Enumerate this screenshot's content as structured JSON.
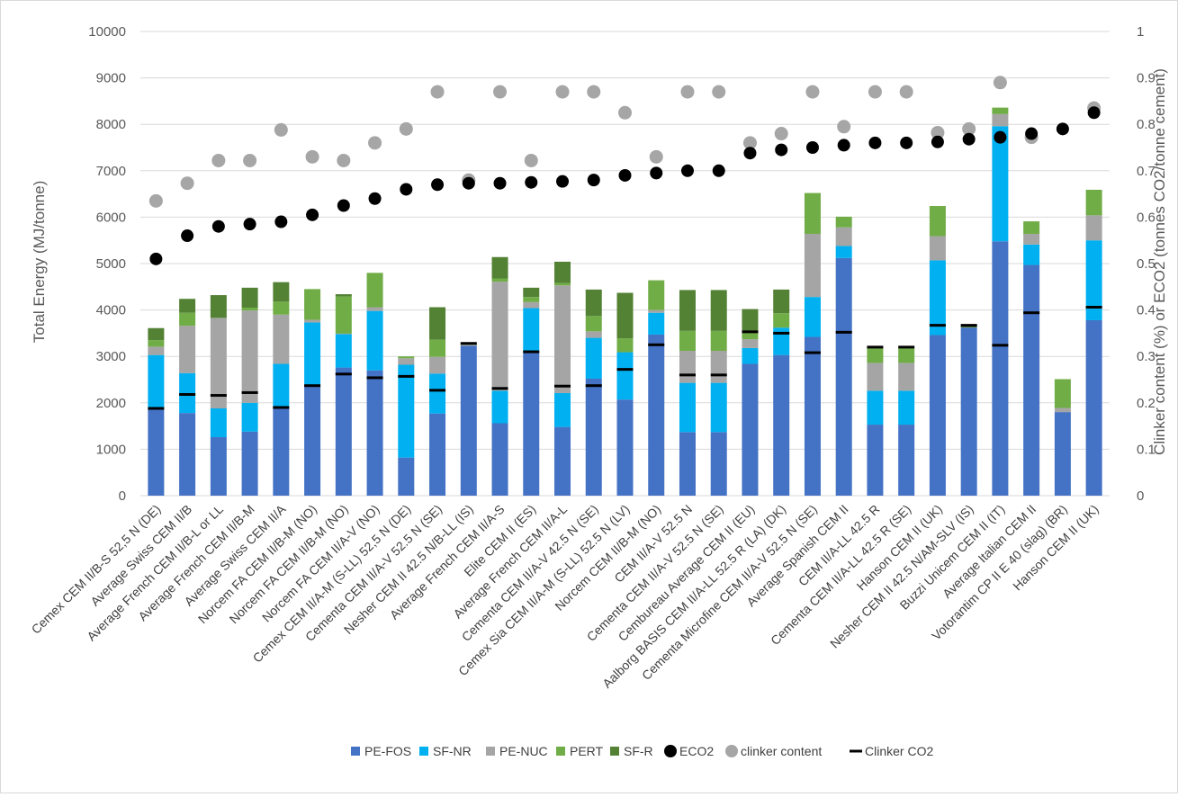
{
  "chart_data": {
    "type": "bar",
    "subtype": "stacked bar with scatter overlay on secondary axis",
    "title": "",
    "ylabel": "Total Energy  (MJ/tonne)",
    "y2label": "Clinker content (%) or ECO2 (tonnes CO2/tonne cement)",
    "ylim": [
      0,
      10000
    ],
    "y2lim": [
      0,
      1
    ],
    "yticks": [
      "0",
      "1000",
      "2000",
      "3000",
      "4000",
      "5000",
      "6000",
      "7000",
      "8000",
      "9000",
      "10000"
    ],
    "y2ticks": [
      "0",
      "0.1",
      "0.2",
      "0.3",
      "0.4",
      "0.5",
      "0.6",
      "0.7",
      "0.8",
      "0.9",
      "1"
    ],
    "grid": "horizontal",
    "legend_position": "bottom",
    "categories": [
      "Cemex CEM II/B-S 52,5 N (DE)",
      "Average Swiss CEM II/B",
      "Average French CEM II/B-L or LL",
      "Average French CEM II/B-M",
      "Average Swiss CEM II/A",
      "Norcem FA CEM II/B-M (NO)",
      "Norcem FA CEM II/B-M (NO)",
      "Norcem FA CEM II/A-V (NO)",
      "Cemex CEM II/A-M (S-LL) 52,5 N (DE)",
      "Cementa CEM II/A-V 52.5 N (SE)",
      "Nesher CEM II 42.5 N/B-LL (IS)",
      "Average French CEM II/A-S",
      "Elite CEM II (ES)",
      "Average French CEM II/A-L",
      "Cementa CEM II/A-V 42.5 N (SE)",
      "Cemex Sia CEM II/A-M (S-LL) 52.5 N (LV)",
      "Norcem CEM II/B-M (NO)",
      "CEM II/A-V 52.5 N",
      "Cementa CEM II/A-V 52.5 N (SE)",
      "Cembureau Average CEM II (EU)",
      "Aalborg BASIS CEM II/A-LL 52.5 R (LA) (DK)",
      "Cementa Microfine CEM II/A-V 52.5 N (SE)",
      "Average Spanish CEM II",
      "CEM II/A-LL 42.5 R",
      "Cementa CEM II/A-LL 42.5 R (SE)",
      "Hanson CEM II (UK)",
      "Nesher CEM II 42.5 N/AM-SLV (IS)",
      "Buzzi Unicem CEM II (IT)",
      "Average Italian CEM II",
      "Votorantim CP II E 40 (slag) (BR)",
      "Hanson CEM II (UK)"
    ],
    "series": [
      {
        "name": "PE-FOS",
        "kind": "bar",
        "axis": "left",
        "color": "#4472c4",
        "values": [
          1870,
          1780,
          1260,
          1380,
          1900,
          2390,
          2760,
          2700,
          820,
          1770,
          3230,
          1560,
          3080,
          1480,
          2520,
          2070,
          3470,
          1370,
          1370,
          2840,
          3030,
          3420,
          5120,
          1530,
          1530,
          3460,
          3620,
          5480,
          4970,
          1800,
          3780
        ]
      },
      {
        "name": "SF-NR",
        "kind": "bar",
        "axis": "left",
        "color": "#00b0f0",
        "values": [
          1160,
          860,
          620,
          620,
          940,
          1340,
          720,
          1280,
          2000,
          860,
          0,
          700,
          960,
          730,
          880,
          1020,
          470,
          1060,
          1060,
          340,
          590,
          860,
          260,
          730,
          730,
          1610,
          0,
          2480,
          440,
          0,
          1720
        ]
      },
      {
        "name": "PE-NUC",
        "kind": "bar",
        "axis": "left",
        "color": "#a5a5a5",
        "values": [
          180,
          1020,
          1950,
          1990,
          1060,
          60,
          10,
          80,
          140,
          360,
          20,
          2350,
          130,
          2320,
          140,
          0,
          60,
          690,
          690,
          190,
          0,
          1360,
          400,
          600,
          600,
          520,
          0,
          260,
          230,
          90,
          540
        ]
      },
      {
        "name": "PERT",
        "kind": "bar",
        "axis": "left",
        "color": "#70ad47",
        "values": [
          140,
          280,
          0,
          60,
          280,
          660,
          800,
          740,
          40,
          370,
          40,
          70,
          110,
          50,
          330,
          300,
          640,
          430,
          430,
          170,
          310,
          880,
          230,
          320,
          320,
          650,
          0,
          140,
          270,
          620,
          550
        ]
      },
      {
        "name": "SF-R",
        "kind": "bar",
        "axis": "left",
        "color": "#548235",
        "values": [
          260,
          300,
          490,
          430,
          420,
          0,
          50,
          0,
          0,
          700,
          0,
          460,
          200,
          460,
          570,
          980,
          0,
          880,
          880,
          480,
          510,
          0,
          0,
          0,
          0,
          0,
          60,
          0,
          0,
          0,
          0
        ]
      },
      {
        "name": "ECO2",
        "kind": "scatter",
        "axis": "right",
        "color": "#000000",
        "values": [
          0.51,
          0.56,
          0.58,
          0.585,
          0.59,
          0.605,
          0.625,
          0.64,
          0.66,
          0.67,
          0.673,
          0.673,
          0.675,
          0.677,
          0.68,
          0.69,
          0.695,
          0.7,
          0.7,
          0.738,
          0.745,
          0.75,
          0.755,
          0.76,
          0.76,
          0.762,
          0.768,
          0.772,
          0.78,
          0.79,
          0.825
        ]
      },
      {
        "name": "clinker content",
        "kind": "scatter",
        "axis": "right",
        "color": "#a6a6a6",
        "values": [
          0.635,
          0.673,
          0.722,
          0.722,
          0.788,
          0.73,
          0.722,
          0.76,
          0.79,
          0.87,
          0.68,
          0.87,
          0.722,
          0.87,
          0.87,
          0.825,
          0.73,
          0.87,
          0.87,
          0.76,
          0.78,
          0.87,
          0.795,
          0.87,
          0.87,
          0.782,
          0.79,
          0.89,
          0.772,
          null,
          0.835
        ]
      },
      {
        "name": "Clinker CO2",
        "kind": "dash",
        "axis": "right",
        "color": "#000000",
        "values": [
          0.188,
          0.218,
          0.216,
          0.222,
          0.19,
          0.237,
          0.262,
          0.254,
          0.257,
          0.227,
          0.328,
          0.231,
          0.31,
          0.236,
          0.237,
          0.272,
          0.325,
          0.26,
          0.26,
          0.353,
          0.35,
          0.308,
          0.352,
          0.32,
          0.32,
          0.367,
          0.367,
          0.324,
          0.394,
          null,
          0.406
        ]
      }
    ]
  }
}
